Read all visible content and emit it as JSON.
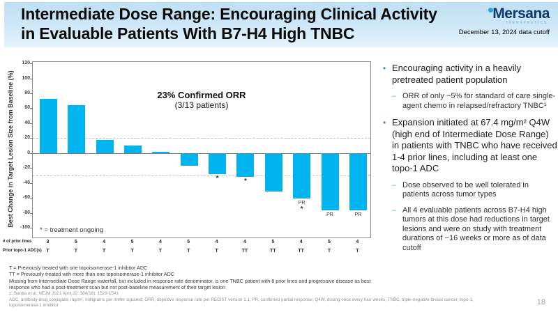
{
  "accent_colors": {
    "bar": "#00b4f0",
    "logo_navy": "#15386b",
    "logo_light_blue": "#2fa3e0",
    "bullet_dot": "#4a86b8",
    "sub_dash": "#55b8e8",
    "header_band": "#cfe8f7"
  },
  "header": {
    "title_line1": "Intermediate Dose Range: Encouraging Clinical Activity",
    "title_line2": "in Evaluable Patients With B7-H4 High TNBC",
    "logo_text": "Mersana",
    "logo_subtext": "THERAPEUTICS",
    "data_cutoff": "December 13, 2024 data cutoff"
  },
  "chart_data": {
    "type": "bar",
    "title": "Waterfall plot of best change in target lesion size",
    "annotation_line1": "23% Confirmed ORR",
    "annotation_line2": "(3/13 patients)",
    "ylabel": "Best Change in Target Lesion Size from Baseline (%)",
    "yticks": [
      120,
      100,
      80,
      60,
      40,
      20,
      0,
      -20,
      -40,
      -60,
      -80,
      -100
    ],
    "ylim": [
      -113,
      122
    ],
    "reference_lines": [
      20,
      -30
    ],
    "grid": "dashed reference lines at +20 and -30",
    "legend_note": "* = treatment ongoing",
    "values": [
      73,
      64,
      18,
      10,
      2,
      -17,
      -28,
      -32,
      -51,
      -61,
      -77,
      -77
    ],
    "ongoing_flags": [
      false,
      false,
      false,
      false,
      false,
      false,
      true,
      true,
      false,
      true,
      false,
      false
    ],
    "pr_flags": [
      false,
      false,
      false,
      false,
      false,
      false,
      false,
      false,
      false,
      true,
      true,
      true
    ],
    "pr_label": "PR",
    "asterisk": "*"
  },
  "patient_table": {
    "rows": [
      {
        "label": "# of prior lines",
        "values": [
          "3",
          "5",
          "4",
          "5",
          "4",
          "5",
          "4",
          "4",
          "5",
          "4",
          "5",
          "4"
        ]
      },
      {
        "label": "Prior topo-1 ADC(s)",
        "values": [
          "T",
          "T",
          "T",
          "T",
          "T",
          "T",
          "T",
          "TT",
          "TT",
          "TT",
          "T",
          "T"
        ]
      }
    ]
  },
  "footnotes": {
    "line1": "T = Previously treated with one topoisomerase-1 inhibitor ADC",
    "line2": "TT = Previously treated with more than one topoisomerase-1 inhibitor ADC",
    "line3": "Missing from Intermediate Dose Range waterfall, but included in response rate denominator, is one TNBC patient with 8 prior lines and progressive disease as best response who had a post-treatment scan but not post-baseline measurement of their target lesion",
    "reference": "1. Bardia et al. NEJM 2021 April 22; 384(16): 1529-1541",
    "abbreviations": "ADC, antibody-drug conjugate; mg/m², milligrams per meter squared; ORR, objective response rate per RECIST version 1.1; PR, confirmed partial response; Q4W, dosing once every four weeks; TNBC, triple-negative breast cancer; topo-1, topoisomerase-1 inhibitor"
  },
  "bullets": [
    {
      "text": "Encouraging activity in a heavily pretreated patient population",
      "subs": [
        "ORR of only ~5% for standard of care single-agent chemo in relapsed/refractory TNBC¹"
      ]
    },
    {
      "text": "Expansion initiated at 67.4 mg/m² Q4W (high end of Intermediate Dose Range) in patients with TNBC who have received 1-4 prior lines, including at least one topo-1 ADC",
      "subs": [
        "Dose observed to be well tolerated in patients across tumor types",
        "All 4 evaluable patients across B7-H4 high tumors at this dose had reductions in target lesions and were on study with treatment durations of ~16 weeks or more as of data cutoff"
      ]
    }
  ],
  "page_number": "18"
}
